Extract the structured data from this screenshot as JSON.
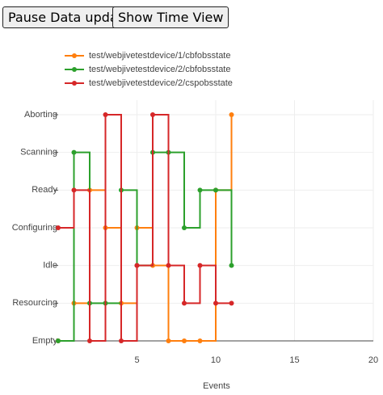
{
  "buttons": [
    "Pause Data update",
    "Show Time View"
  ],
  "chart_data": {
    "type": "step",
    "x_label": "Events",
    "x": [
      0,
      1,
      2,
      3,
      4,
      5,
      6,
      7,
      8,
      9,
      10,
      11
    ],
    "xlim": [
      0,
      20
    ],
    "xticks": [
      5,
      10,
      15,
      20
    ],
    "ycategories": [
      "Empty",
      "Resourcing",
      "Idle",
      "Configuring",
      "Ready",
      "Scanning",
      "Aborting"
    ],
    "grid": true,
    "legend": "top-left",
    "series": [
      {
        "name": "test/webjivetestdevice/1/cbfobsstate",
        "color": "#ff7f0e",
        "values": [
          "Empty",
          "Resourcing",
          "Ready",
          "Configuring",
          "Resourcing",
          "Configuring",
          "Idle",
          "Empty",
          "Empty",
          "Empty",
          "Ready",
          "Aborting"
        ]
      },
      {
        "name": "test/webjivetestdevice/2/cbfobsstate",
        "color": "#2ca02c",
        "values": [
          "Empty",
          "Scanning",
          "Resourcing",
          "Resourcing",
          "Ready",
          "Idle",
          "Scanning",
          "Scanning",
          "Configuring",
          "Ready",
          "Ready",
          "Idle"
        ]
      },
      {
        "name": "test/webjivetestdevice/2/cspobsstate",
        "color": "#d62728",
        "values": [
          "Configuring",
          "Ready",
          "Empty",
          "Aborting",
          "Empty",
          "Idle",
          "Aborting",
          "Idle",
          "Resourcing",
          "Idle",
          "Resourcing",
          "Resourcing"
        ]
      }
    ]
  }
}
